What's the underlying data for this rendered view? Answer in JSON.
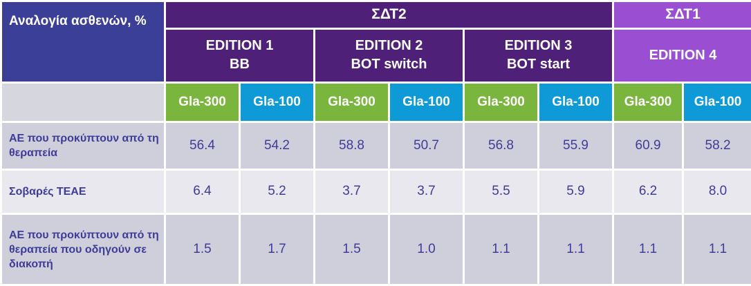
{
  "corner_label": "Αναλογία ασθενών, %",
  "groups": [
    {
      "label": "ΣΔΤ2"
    },
    {
      "label": "ΣΔΤ1"
    }
  ],
  "editions": [
    {
      "line1": "EDITION 1",
      "line2": "BB"
    },
    {
      "line1": "EDITION 2",
      "line2": "BOT switch"
    },
    {
      "line1": "EDITION 3",
      "line2": "BOT start"
    },
    {
      "line1": "EDITION 4",
      "line2": ""
    }
  ],
  "columns": [
    "Gla-300",
    "Gla-100",
    "Gla-300",
    "Gla-100",
    "Gla-300",
    "Gla-100",
    "Gla-300",
    "Gla-100"
  ],
  "colors": {
    "sdt2": "#4f2077",
    "sdt1": "#9a4fd3",
    "gla300": "#7ab53e",
    "gla100": "#0d9ad6",
    "header_left": "#3c3f97",
    "text": "#3e3c96"
  },
  "rows": [
    {
      "label": "ΑΕ που προκύπτουν από τη θεραπεία",
      "values": [
        "56.4",
        "54.2",
        "58.8",
        "50.7",
        "56.8",
        "55.9",
        "60.9",
        "58.2"
      ]
    },
    {
      "label": "Σοβαρές TEAE",
      "values": [
        "6.4",
        "5.2",
        "3.7",
        "3.7",
        "5.5",
        "5.9",
        "6.2",
        "8.0"
      ]
    },
    {
      "label": "ΑΕ που προκύπτουν από τη θεραπεία που οδηγούν σε διακοπή",
      "values": [
        "1.5",
        "1.7",
        "1.5",
        "1.0",
        "1.1",
        "1.1",
        "1.1",
        "1.1"
      ]
    }
  ]
}
